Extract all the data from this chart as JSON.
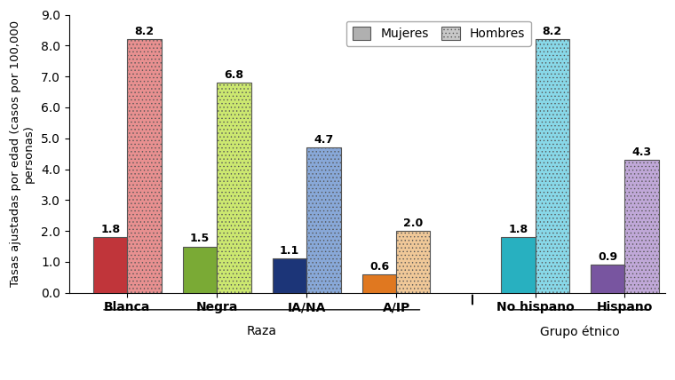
{
  "groups": [
    "Blanca",
    "Negra",
    "IA/NA",
    "A/IP",
    "No hispano",
    "Hispano"
  ],
  "mujeres": [
    1.8,
    1.5,
    1.1,
    0.6,
    1.8,
    0.9
  ],
  "hombres": [
    8.2,
    6.8,
    4.7,
    2.0,
    8.2,
    4.3
  ],
  "mujeres_colors": [
    "#c0353a",
    "#7aaa35",
    "#1c3578",
    "#e07820",
    "#28b0c0",
    "#7855a0"
  ],
  "hombres_colors": [
    "#e89090",
    "#cce870",
    "#88a8d8",
    "#f0c898",
    "#88d8e8",
    "#c0a8d8"
  ],
  "xlabel_raza": "Raza",
  "xlabel_etnico": "Grupo étnico",
  "ylabel": "Tasas ajustadas por edad (casos por 100,000\npersonas)",
  "ylim": [
    0.0,
    9.0
  ],
  "yticks": [
    0.0,
    1.0,
    2.0,
    3.0,
    4.0,
    5.0,
    6.0,
    7.0,
    8.0,
    9.0
  ],
  "legend_mujeres": "Mujeres",
  "legend_hombres": "Hombres",
  "legend_mujeres_color": "#b0b0b0",
  "legend_hombres_color": "#c8c8c8",
  "background_color": "#ffffff",
  "positions": [
    0,
    1,
    2,
    3,
    4.55,
    5.55
  ],
  "bar_width": 0.38
}
